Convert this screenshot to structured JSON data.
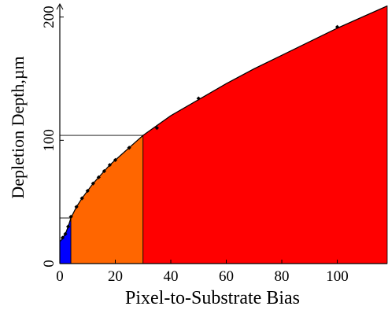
{
  "chart_data": {
    "type": "area",
    "title": "",
    "xlabel": "Pixel-to-Substrate Bias",
    "ylabel": "Depletion Depth,µm",
    "xlim": [
      0,
      118
    ],
    "ylim": [
      0,
      210
    ],
    "x_ticks": [
      0,
      20,
      40,
      60,
      80,
      100
    ],
    "y_ticks": [
      0,
      100,
      200
    ],
    "grid": false,
    "legend": "none",
    "series": [
      {
        "x": [
          0,
          0.5,
          1,
          2,
          3,
          4,
          6,
          8,
          10,
          12,
          14,
          16,
          18,
          20,
          22,
          25,
          30,
          35,
          40,
          50,
          60,
          70,
          80,
          90,
          100,
          110,
          118
        ],
        "y": [
          18,
          19,
          21,
          24,
          30,
          37,
          46,
          53,
          59,
          65,
          70,
          75,
          80,
          84,
          88,
          94,
          104,
          112,
          120,
          133,
          146,
          158,
          169,
          180,
          191,
          201,
          209
        ]
      }
    ],
    "markers": {
      "x": [
        1,
        2,
        3,
        4,
        6,
        8,
        10,
        12,
        14,
        16,
        18,
        20,
        25,
        35,
        50,
        100
      ],
      "y": [
        21,
        24,
        30,
        38,
        46,
        53,
        59,
        65,
        70,
        75,
        80,
        84,
        94,
        110,
        134,
        192
      ]
    },
    "regions": [
      {
        "x_start": 0,
        "x_end": 4,
        "color": "#0000ff"
      },
      {
        "x_start": 4,
        "x_end": 30,
        "color": "#ff6600"
      },
      {
        "x_start": 30,
        "x_end": 118,
        "color": "#ff0000"
      }
    ],
    "reference_lines": [
      {
        "x_end": 30,
        "y": 104
      },
      {
        "x_end": 4,
        "y": 37
      }
    ],
    "colors": {
      "curve": "#000000",
      "axis": "#000000",
      "marker": "#000000"
    }
  }
}
